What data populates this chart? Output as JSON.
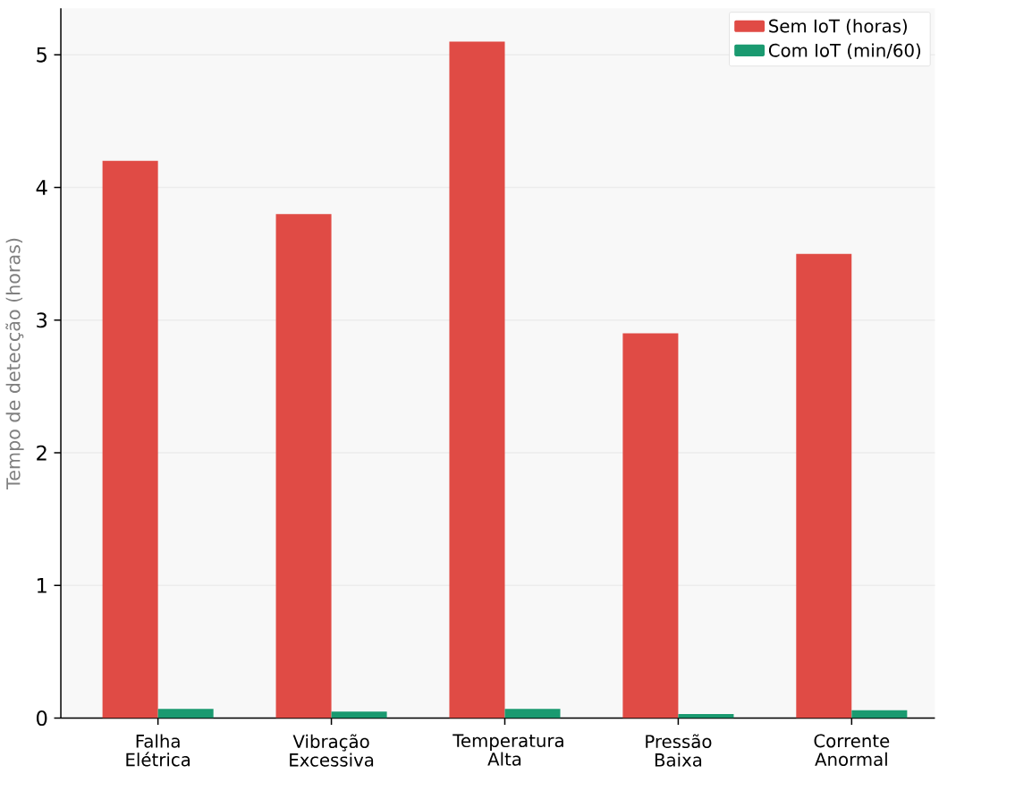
{
  "chart_data": {
    "type": "bar",
    "ylabel": "Tempo de detecção (horas)",
    "categories": [
      "Falha Elétrica",
      "Vibração Excessiva",
      "Temperatura Alta",
      "Pressão Baixa",
      "Corrente Anormal"
    ],
    "series": [
      {
        "name": "Sem IoT (horas)",
        "color": "#e04b45",
        "values": [
          4.2,
          3.8,
          5.1,
          2.9,
          3.5
        ]
      },
      {
        "name": "Com IoT (min/60)",
        "color": "#1a9a70",
        "values": [
          0.07,
          0.05,
          0.07,
          0.03,
          0.06
        ]
      }
    ],
    "ylim": [
      0,
      5.35
    ],
    "yticks": [
      0,
      1,
      2,
      3,
      4,
      5
    ],
    "grid": "y",
    "legend": "top right"
  }
}
